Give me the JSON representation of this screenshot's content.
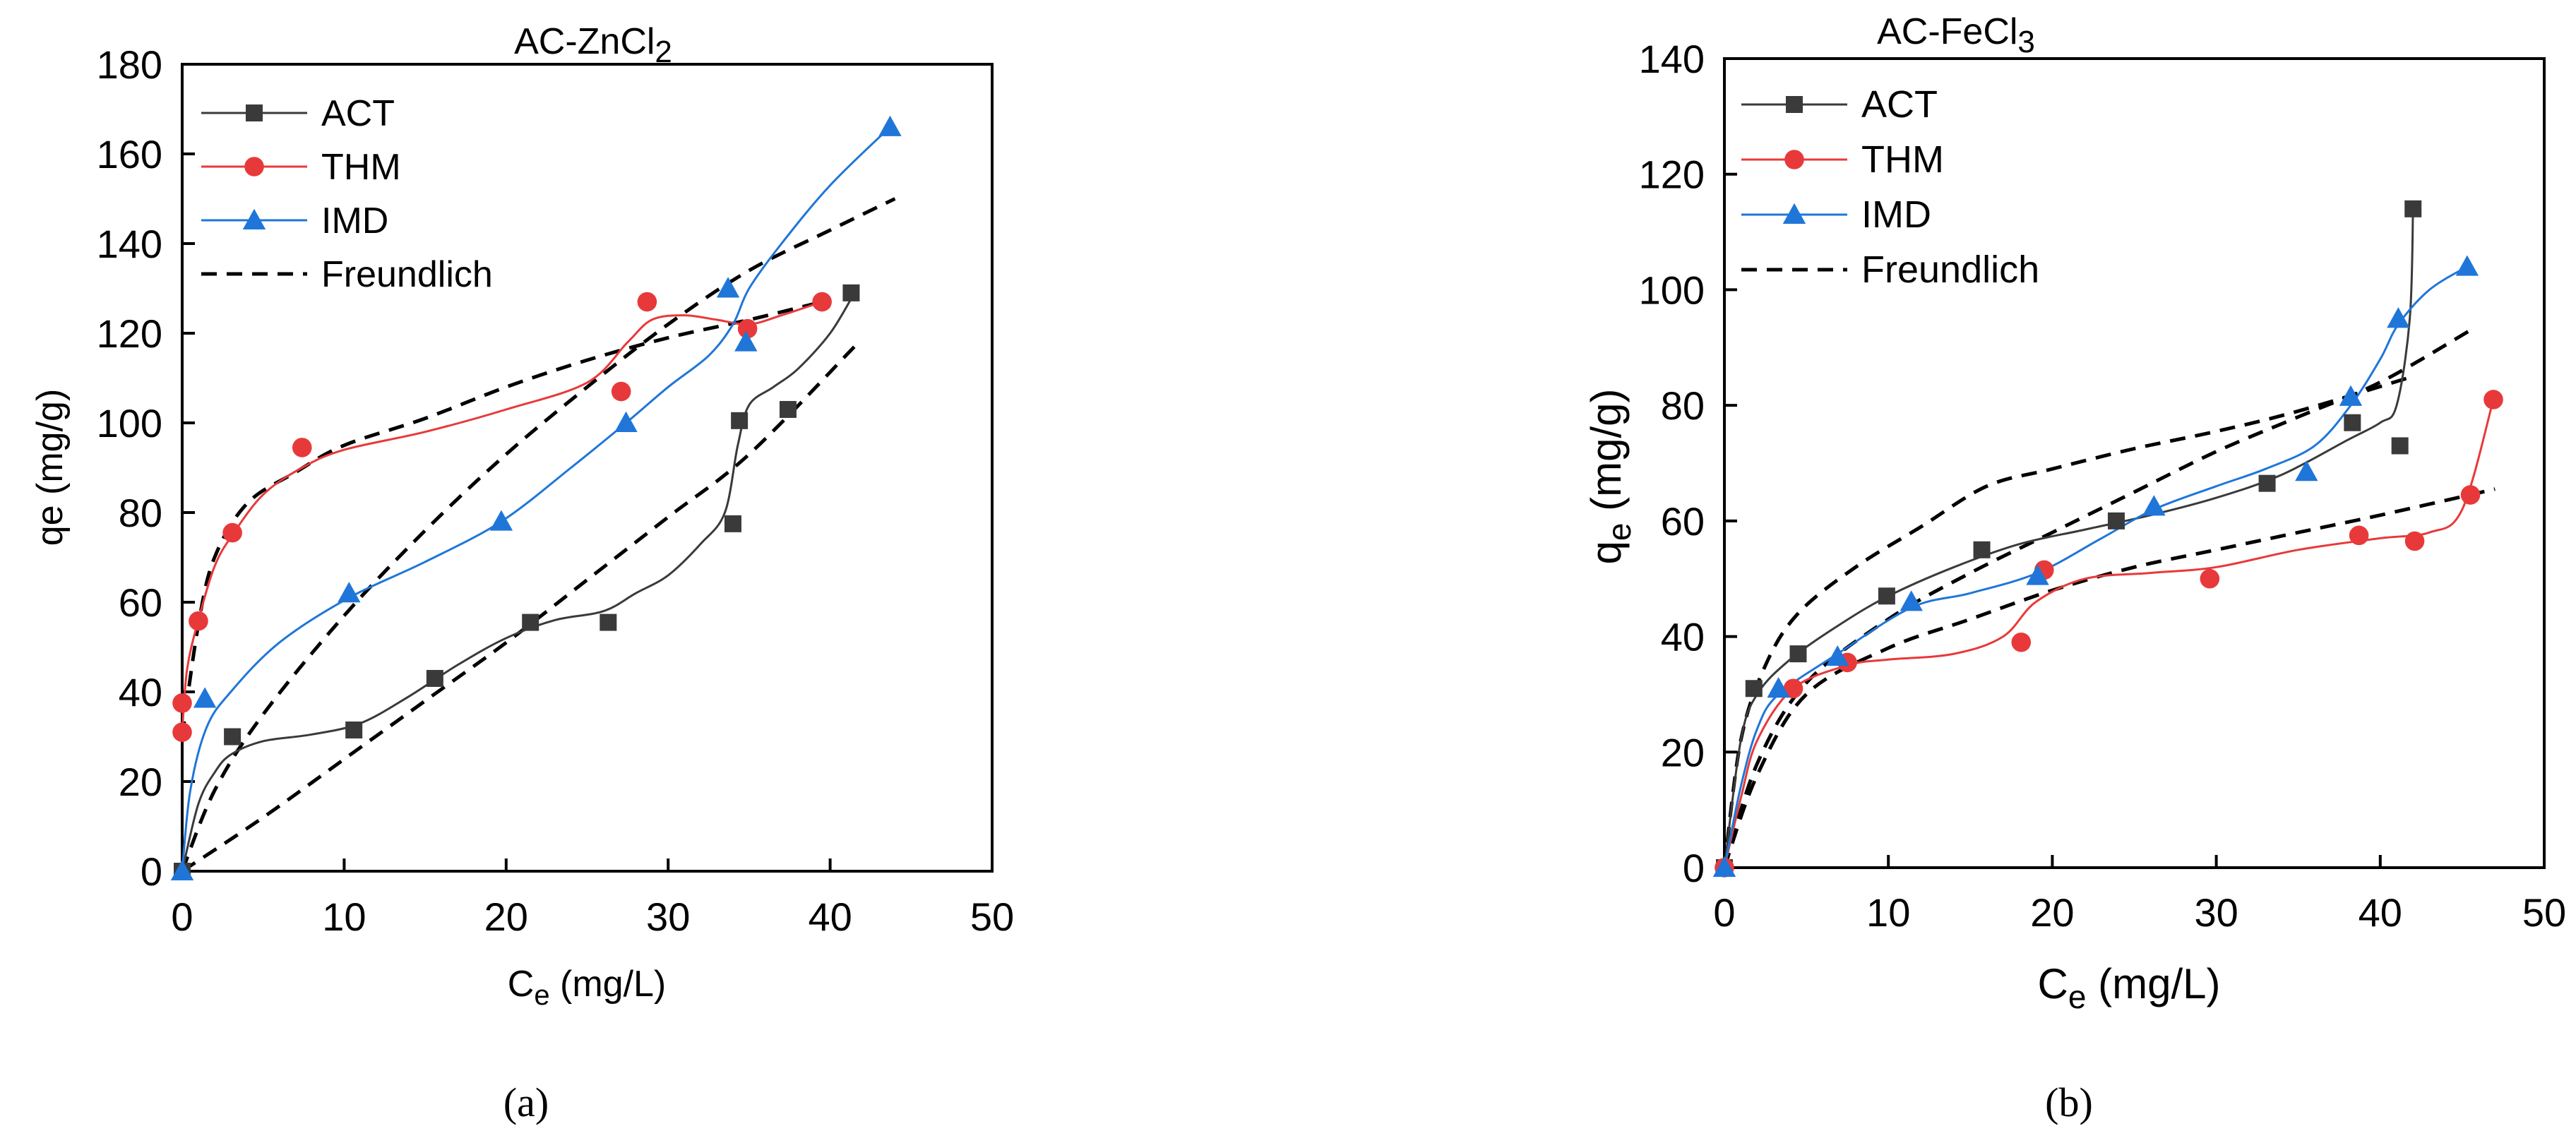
{
  "panel_labels": [
    "(a)",
    "(b)"
  ],
  "colors": {
    "ACT": "#3a3a3a",
    "THM": "#e8393a",
    "IMD": "#1f76d8",
    "Freundlich": "#000000"
  },
  "chart_data": [
    {
      "type": "scatter",
      "title": "AC-ZnCl2",
      "title_main": "AC-ZnCl",
      "title_sub": "2",
      "xlabel_main": "C",
      "xlabel_sub": "e",
      "xlabel_rest": " (mg/L)",
      "ylabel": "qe (mg/g)",
      "xlim": [
        0,
        50
      ],
      "ylim": [
        0,
        180
      ],
      "xticks": [
        0,
        10,
        20,
        30,
        40,
        50
      ],
      "yticks": [
        0,
        20,
        40,
        60,
        80,
        100,
        120,
        140,
        160,
        180
      ],
      "legend": [
        "ACT",
        "THM",
        "IMD",
        "Freundlich"
      ],
      "series": [
        {
          "name": "ACT",
          "marker": "square",
          "x": [
            0,
            3.1,
            10.6,
            15.6,
            21.5,
            26.3,
            34,
            34.4,
            37.4,
            41.3
          ],
          "y": [
            0,
            30,
            31.5,
            43,
            55.5,
            55.5,
            77.5,
            100.5,
            103,
            129
          ],
          "curve_x": [
            0,
            1,
            2,
            3,
            5,
            8,
            11,
            14,
            17,
            20,
            23,
            26,
            28,
            30,
            32,
            33.5,
            34.3,
            35,
            36.5,
            38,
            40,
            41.5
          ],
          "curve_y": [
            0,
            15,
            22,
            26,
            29,
            30.5,
            33,
            39,
            46,
            52,
            56,
            58,
            62,
            66,
            73,
            80,
            95,
            104,
            108,
            112,
            120,
            129
          ]
        },
        {
          "name": "THM",
          "marker": "circle",
          "x": [
            0,
            0,
            1,
            3.1,
            7.4,
            27.1,
            28.7,
            34.9,
            39.5
          ],
          "y": [
            31,
            37.5,
            55.8,
            75.5,
            94.5,
            107,
            127,
            121,
            127
          ],
          "curve_x": [
            0,
            0.3,
            1,
            2,
            3.1,
            5,
            7.4,
            10,
            15,
            20,
            25,
            27.5,
            29,
            31,
            33,
            35,
            37,
            39.5
          ],
          "curve_y": [
            31,
            45,
            56,
            68,
            75,
            84,
            90,
            94,
            98,
            103,
            109,
            118,
            123,
            124,
            123,
            122,
            124,
            127
          ]
        },
        {
          "name": "IMD",
          "marker": "triangle",
          "x": [
            0,
            1.4,
            10.3,
            19.7,
            27.4,
            33.7,
            34.8,
            43.7
          ],
          "y": [
            0,
            38.5,
            62,
            78,
            100,
            130,
            118,
            166
          ],
          "curve_x": [
            0,
            0.5,
            1.5,
            3,
            6,
            10.3,
            15,
            19.7,
            24,
            27.4,
            30,
            32.5,
            34,
            35,
            37,
            40,
            43.7
          ],
          "curve_y": [
            0,
            18,
            32,
            40,
            51,
            61,
            69,
            78,
            90,
            100,
            108,
            115,
            122,
            130,
            140,
            153,
            166
          ]
        }
      ],
      "fits": [
        {
          "name": "Freundlich (THM)",
          "x": [
            0,
            1,
            2,
            4,
            7,
            10,
            15,
            20,
            25,
            30,
            35,
            39.5
          ],
          "y": [
            30,
            55,
            70,
            82,
            89,
            95,
            101,
            108,
            114,
            119,
            123,
            127
          ]
        },
        {
          "name": "Freundlich (IMD)",
          "x": [
            0,
            2,
            5,
            10,
            15,
            20,
            25,
            30,
            35,
            40,
            44
          ],
          "y": [
            0,
            18,
            35,
            57,
            76,
            93,
            108,
            122,
            134,
            143,
            150
          ]
        },
        {
          "name": "Freundlich (ACT)",
          "x": [
            0,
            5,
            10,
            15,
            20,
            25,
            30,
            35,
            41.5
          ],
          "y": [
            0,
            12,
            25,
            38,
            51,
            65,
            79,
            93,
            117
          ]
        }
      ]
    },
    {
      "type": "scatter",
      "title": "AC-FeCl3",
      "title_main": "AC-FeCl",
      "title_sub": "3",
      "xlabel_main": "C",
      "xlabel_sub": "e",
      "xlabel_rest": " (mg/L)",
      "ylabel_main": "q",
      "ylabel_sub": "e",
      "ylabel_rest": " (mg/g)",
      "xlim": [
        0,
        50
      ],
      "ylim": [
        0,
        140
      ],
      "xticks": [
        0,
        10,
        20,
        30,
        40,
        50
      ],
      "yticks": [
        0,
        20,
        40,
        60,
        80,
        100,
        120,
        140
      ],
      "legend": [
        "ACT",
        "THM",
        "IMD",
        "Freundlich"
      ],
      "series": [
        {
          "name": "ACT",
          "marker": "square",
          "x": [
            0,
            1.8,
            4.5,
            9.9,
            15.7,
            23.9,
            33.1,
            38.3,
            41.2,
            42
          ],
          "y": [
            0,
            31,
            37,
            47,
            55,
            60,
            66.5,
            77,
            73,
            114
          ],
          "curve_x": [
            0,
            1,
            2,
            4,
            7,
            10,
            14,
            18,
            22,
            26,
            30,
            34,
            38,
            40,
            41,
            41.8,
            42
          ],
          "curve_y": [
            0,
            22,
            30,
            36,
            42,
            47,
            52,
            56,
            58.5,
            61,
            64,
            68,
            74,
            77,
            80,
            95,
            114
          ]
        },
        {
          "name": "THM",
          "marker": "circle",
          "x": [
            0,
            4.2,
            7.5,
            18.1,
            19.5,
            29.6,
            38.7,
            42.1,
            45.5,
            46.9
          ],
          "y": [
            0,
            31,
            35.5,
            39,
            51.5,
            50,
            57.5,
            56.5,
            64.5,
            81
          ],
          "curve_x": [
            0,
            1,
            2,
            4.2,
            7.5,
            10,
            14,
            17,
            19,
            22,
            26,
            30,
            35,
            40,
            43,
            45,
            46.9
          ],
          "curve_y": [
            0,
            12,
            22,
            31,
            35,
            36,
            37,
            40,
            46,
            50,
            51,
            52,
            55,
            57,
            58,
            62,
            81
          ]
        },
        {
          "name": "IMD",
          "marker": "triangle",
          "x": [
            0,
            3.3,
            6.9,
            11.4,
            19.1,
            26.2,
            35.5,
            38.2,
            41.1,
            45.3
          ],
          "y": [
            0,
            31,
            36.5,
            46,
            50.5,
            62.5,
            68.5,
            81.5,
            95,
            104
          ],
          "curve_x": [
            0,
            1,
            2,
            3.3,
            6.9,
            11.4,
            15,
            19.1,
            23,
            26.2,
            30,
            33,
            36,
            38.2,
            40,
            41.1,
            43,
            45.3
          ],
          "curve_y": [
            0,
            14,
            24,
            30,
            37,
            45,
            47.5,
            51,
            57,
            62,
            66,
            69,
            73,
            80,
            88,
            94,
            100,
            104
          ]
        }
      ],
      "fits": [
        {
          "name": "Freundlich (ACT)",
          "x": [
            0,
            1,
            2.5,
            4.5,
            8,
            12,
            16,
            20,
            25,
            30,
            35,
            42
          ],
          "y": [
            0,
            22,
            35,
            44,
            52,
            59,
            66,
            69,
            72.5,
            75.5,
            79,
            85
          ]
        },
        {
          "name": "Freundlich (IMD)",
          "x": [
            0,
            2,
            5,
            10,
            15,
            20,
            25,
            30,
            35,
            40,
            45.5
          ],
          "y": [
            0,
            18,
            32,
            43,
            51,
            58,
            65,
            72,
            78,
            84,
            93
          ]
        },
        {
          "name": "Freundlich (THM)",
          "x": [
            0,
            2,
            5,
            10,
            15,
            20,
            25,
            30,
            35,
            40,
            47
          ],
          "y": [
            0,
            16,
            30,
            38,
            43,
            48,
            52,
            55,
            58,
            61,
            65.5
          ]
        }
      ]
    }
  ]
}
